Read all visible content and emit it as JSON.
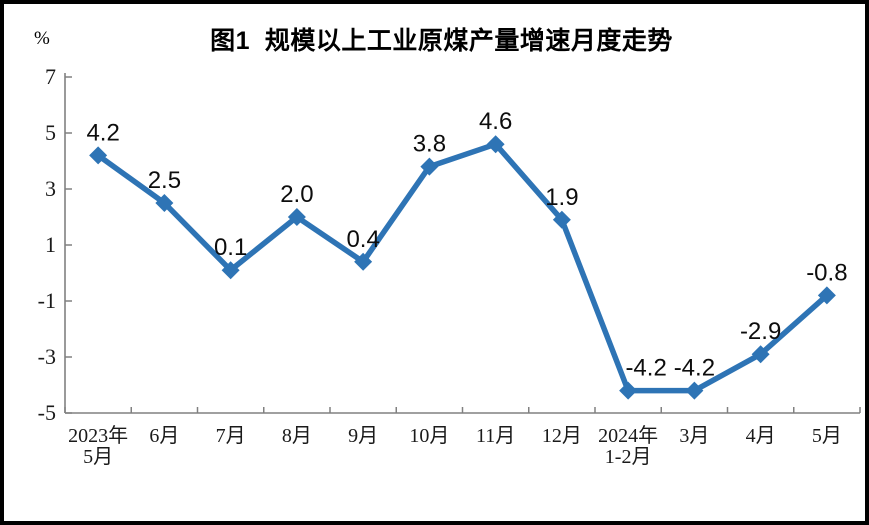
{
  "figure": {
    "title": "图1  规模以上工业原煤产量增速月度走势",
    "unit_label": "%"
  },
  "chart_data": {
    "type": "line",
    "title": "图1  规模以上工业原煤产量增速月度走势",
    "ylabel": "%",
    "xlabel": "",
    "categories": [
      "2023年\n5月",
      "6月",
      "7月",
      "8月",
      "9月",
      "10月",
      "11月",
      "12月",
      "2024年\n1-2月",
      "3月",
      "4月",
      "5月"
    ],
    "values": [
      4.2,
      2.5,
      0.1,
      2.0,
      0.4,
      3.8,
      4.6,
      1.9,
      -4.2,
      -4.2,
      -2.9,
      -0.8
    ],
    "data_labels": [
      "4.2",
      "2.5",
      "0.1",
      "2.0",
      "0.4",
      "3.8",
      "4.6",
      "1.9",
      "-4.2",
      "-4.2",
      "-2.9",
      "-0.8"
    ],
    "yticks": [
      7,
      5,
      3,
      1,
      -1,
      -3,
      -5
    ],
    "ylim": [
      -5,
      7
    ],
    "grid": false,
    "legend_position": "none",
    "marker": "diamond",
    "line_color": "#2E74B5",
    "axis_color": "#808080",
    "label_color": "#0d0d0d"
  }
}
